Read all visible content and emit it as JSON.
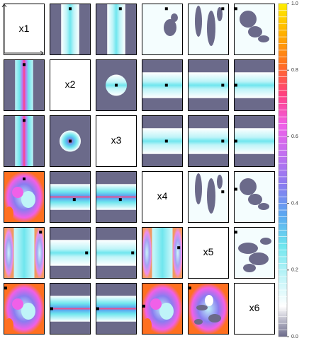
{
  "chart_data": {
    "type": "pairs",
    "variables": [
      "x1",
      "x2",
      "x3",
      "x4",
      "x5",
      "x6"
    ],
    "colorbar": {
      "ylim": [
        0,
        1
      ],
      "yticks": [
        {
          "value": 0,
          "label": "0.0"
        },
        {
          "value": 0.2,
          "label": "0.2"
        },
        {
          "value": 0.4,
          "label": "0.4"
        },
        {
          "value": 0.6,
          "label": "0.6"
        },
        {
          "value": 0.8,
          "label": "0.8"
        },
        {
          "value": 1,
          "label": "1.0"
        }
      ],
      "colorscale": [
        "#6b6a8a",
        "#ffffff",
        "#bff4f8",
        "#6fe6ee",
        "#5aa8f0",
        "#8a7cf0",
        "#c070f0",
        "#f060e8",
        "#ff4080",
        "#ff7020",
        "#ffb000",
        "#ffee00"
      ]
    }
  }
}
